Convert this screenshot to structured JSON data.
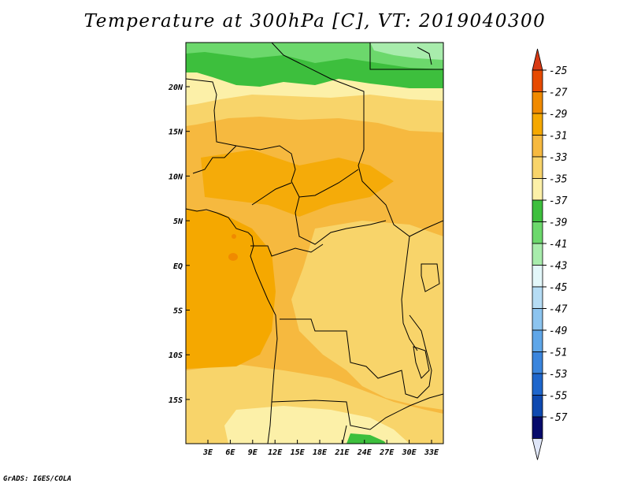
{
  "title": "Temperature at 300hPa [C], VT: 2019040300",
  "credit": "GrADS: IGES/COLA",
  "map": {
    "x_ticks": [
      "3E",
      "6E",
      "9E",
      "12E",
      "15E",
      "18E",
      "21E",
      "24E",
      "27E",
      "30E",
      "33E"
    ],
    "y_ticks": [
      "20N",
      "15N",
      "10N",
      "5N",
      "EQ",
      "5S",
      "10S",
      "15S"
    ]
  },
  "colorbar": {
    "labels": [
      "-25",
      "-27",
      "-29",
      "-31",
      "-33",
      "-35",
      "-37",
      "-39",
      "-41",
      "-43",
      "-45",
      "-47",
      "-49",
      "-51",
      "-53",
      "-55",
      "-57"
    ],
    "colors": [
      "#e64a00",
      "#f08a00",
      "#f5a800",
      "#f6b93f",
      "#f8d46a",
      "#fcf0a8",
      "#3dbf3d",
      "#6cd86c",
      "#a8ecac",
      "#e3f7f9",
      "#b5dcf4",
      "#8cc4ef",
      "#5fa6e8",
      "#3a85dd",
      "#1e66cc",
      "#0e49b0",
      "#060a6b"
    ],
    "over_color": "#d83a14",
    "under_color": "#dfe6f8"
  }
}
